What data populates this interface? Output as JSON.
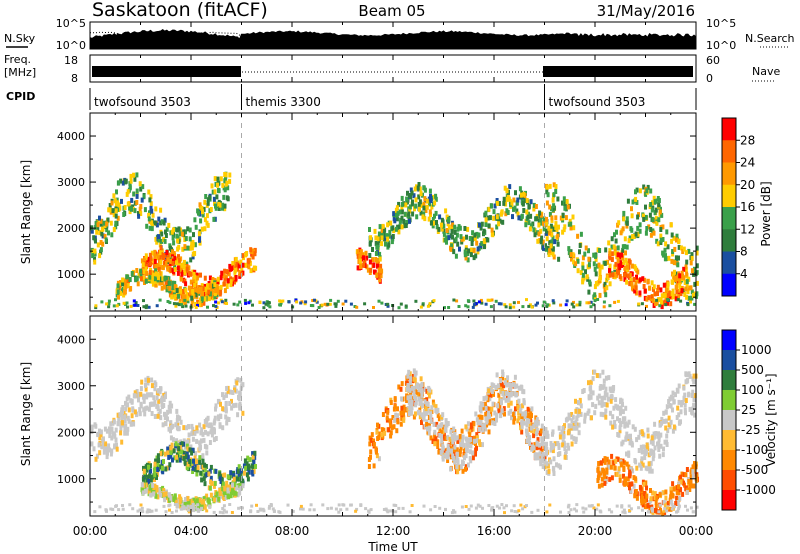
{
  "header": {
    "station": "Saskatoon (fitACF)",
    "beam": "Beam 05",
    "date": "31/May/2016"
  },
  "strip": {
    "nsky_label": "N.Sky",
    "nsearch_label": "N.Search",
    "noise_ticks_left": [
      "10^5",
      "10^0"
    ],
    "noise_ticks_right": [
      "10^5",
      "10^0"
    ],
    "freq_label": "Freq.",
    "freq_unit": "[MHz]",
    "freq_ticks": [
      "18",
      "8"
    ],
    "nave_label": "Nave",
    "nave_ticks": [
      "60",
      "0"
    ],
    "cpid_label": "CPID",
    "cpid_segments": [
      {
        "label": "twofsound 3503",
        "start_h": 0,
        "end_h": 6
      },
      {
        "label": "themis 3300",
        "start_h": 6,
        "end_h": 18
      },
      {
        "label": "twofsound 3503",
        "start_h": 18,
        "end_h": 24
      }
    ]
  },
  "colors": {
    "power": [
      "#0000ff",
      "#1a4fa0",
      "#2f7d3c",
      "#3aa04a",
      "#ffcc00",
      "#ff9900",
      "#ff6600",
      "#ff0000"
    ],
    "velocity": [
      "#ff0000",
      "#ff4d00",
      "#ff8800",
      "#ffbb33",
      "#c8c8c8",
      "#7fcc33",
      "#2f7d3c",
      "#1a4fa0",
      "#0000ff"
    ]
  },
  "chart_data": [
    {
      "type": "heatmap",
      "name": "power",
      "ylabel": "Slant Range [km]",
      "xlabel": "",
      "ylim": [
        200,
        4500
      ],
      "xlim_hours": [
        0,
        24
      ],
      "y_ticks": [
        "1000",
        "2000",
        "3000",
        "4000"
      ],
      "colorbar": {
        "label": "Power [dB]",
        "ticks": [
          "4",
          "8",
          "12",
          "16",
          "20",
          "24",
          "28"
        ],
        "range": [
          0,
          32
        ]
      },
      "echo_regions": [
        {
          "t_start": 0.0,
          "t_end": 5.5,
          "r_low": 1400,
          "r_high": 2900,
          "mean": 14
        },
        {
          "t_start": 2.0,
          "t_end": 6.5,
          "r_low": 600,
          "r_high": 1400,
          "mean": 24
        },
        {
          "t_start": 1.0,
          "t_end": 5.0,
          "r_low": 400,
          "r_high": 1000,
          "mean": 18
        },
        {
          "t_start": 10.5,
          "t_end": 11.5,
          "r_low": 700,
          "r_high": 1400,
          "mean": 26
        },
        {
          "t_start": 11.0,
          "t_end": 18.5,
          "r_low": 1500,
          "r_high": 2700,
          "mean": 14
        },
        {
          "t_start": 18.0,
          "t_end": 24.0,
          "r_low": 800,
          "r_high": 2600,
          "mean": 16
        },
        {
          "t_start": 20.5,
          "t_end": 23.5,
          "r_low": 400,
          "r_high": 1300,
          "mean": 24
        }
      ]
    },
    {
      "type": "heatmap",
      "name": "velocity",
      "ylabel": "Slant Range [km]",
      "xlabel": "Time UT",
      "ylim": [
        200,
        4500
      ],
      "xlim_hours": [
        0,
        24
      ],
      "y_ticks": [
        "1000",
        "2000",
        "3000",
        "4000"
      ],
      "x_ticks": [
        "00:00",
        "04:00",
        "08:00",
        "12:00",
        "16:00",
        "20:00",
        "00:00"
      ],
      "colorbar": {
        "label": "Velocity [m s⁻¹]",
        "ticks": [
          "1000",
          "500",
          "100",
          "25",
          "-25",
          "-100",
          "-500",
          "-1000"
        ]
      },
      "echo_regions": [
        {
          "t_start": 0.0,
          "t_end": 6.0,
          "r_low": 1600,
          "r_high": 2900,
          "class": "ground"
        },
        {
          "t_start": 2.0,
          "t_end": 6.5,
          "r_low": 800,
          "r_high": 1600,
          "class": "positive"
        },
        {
          "t_start": 2.0,
          "t_end": 6.0,
          "r_low": 400,
          "r_high": 800,
          "class": "mixed"
        },
        {
          "t_start": 11.0,
          "t_end": 18.0,
          "r_low": 1400,
          "r_high": 2900,
          "class": "negative"
        },
        {
          "t_start": 12.5,
          "t_end": 24.0,
          "r_low": 1400,
          "r_high": 3000,
          "class": "ground"
        },
        {
          "t_start": 20.0,
          "t_end": 24.0,
          "r_low": 400,
          "r_high": 1300,
          "class": "negative"
        }
      ]
    }
  ]
}
